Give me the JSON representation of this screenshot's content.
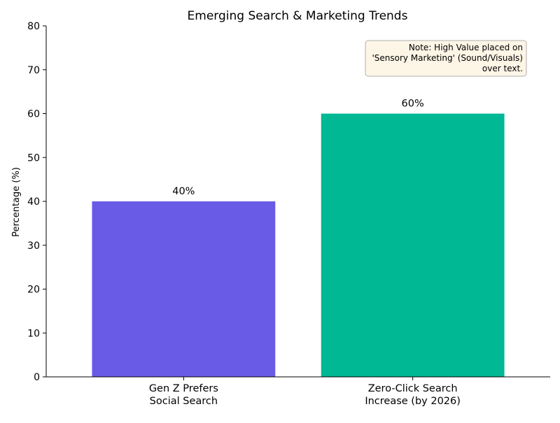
{
  "chart_data": {
    "type": "bar",
    "title": "Emerging Search & Marketing Trends",
    "xlabel": "",
    "ylabel": "Percentage (%)",
    "ylim": [
      0,
      80
    ],
    "yticks": [
      0,
      10,
      20,
      30,
      40,
      50,
      60,
      70,
      80
    ],
    "categories": [
      [
        "Gen Z Prefers",
        "Social Search"
      ],
      [
        "Zero-Click Search",
        "Increase (by 2026)"
      ]
    ],
    "values": [
      40,
      60
    ],
    "value_labels": [
      "40%",
      "60%"
    ],
    "colors": [
      "#6a5be6",
      "#00b894"
    ],
    "grid": false,
    "annotation": {
      "lines": [
        "Note: High Value placed on",
        "'Sensory Marketing' (Sound/Visuals)",
        "over text."
      ],
      "placement": "top-right",
      "background": "#fdf5e6",
      "border": "#b0b0b0"
    }
  }
}
